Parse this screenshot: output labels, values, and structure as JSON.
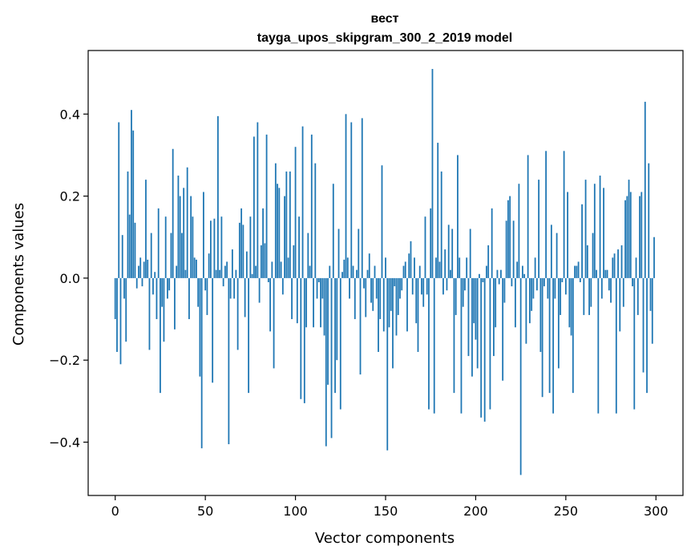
{
  "chart_data": {
    "type": "bar",
    "title": "вест",
    "subtitle": "tayga_upos_skipgram_300_2_2019 model",
    "xlabel": "Vector components",
    "ylabel": "Components values",
    "xlim": [
      -15,
      315
    ],
    "ylim": [
      -0.53,
      0.555
    ],
    "xticks": [
      0,
      50,
      100,
      150,
      200,
      250,
      300
    ],
    "xtick_labels": [
      "0",
      "50",
      "100",
      "150",
      "200",
      "250",
      "300"
    ],
    "yticks": [
      -0.4,
      -0.2,
      0.0,
      0.2,
      0.4
    ],
    "ytick_labels": [
      "−0.4",
      "−0.2",
      "0.0",
      "0.2",
      "0.4"
    ],
    "series_color": "#1f77b4",
    "x": [
      0,
      1,
      2,
      3,
      4,
      5,
      6,
      7,
      8,
      9,
      10,
      11,
      12,
      13,
      14,
      15,
      16,
      17,
      18,
      19,
      20,
      21,
      22,
      23,
      24,
      25,
      26,
      27,
      28,
      29,
      30,
      31,
      32,
      33,
      34,
      35,
      36,
      37,
      38,
      39,
      40,
      41,
      42,
      43,
      44,
      45,
      46,
      47,
      48,
      49,
      50,
      51,
      52,
      53,
      54,
      55,
      56,
      57,
      58,
      59,
      60,
      61,
      62,
      63,
      64,
      65,
      66,
      67,
      68,
      69,
      70,
      71,
      72,
      73,
      74,
      75,
      76,
      77,
      78,
      79,
      80,
      81,
      82,
      83,
      84,
      85,
      86,
      87,
      88,
      89,
      90,
      91,
      92,
      93,
      94,
      95,
      96,
      97,
      98,
      99,
      100,
      101,
      102,
      103,
      104,
      105,
      106,
      107,
      108,
      109,
      110,
      111,
      112,
      113,
      114,
      115,
      116,
      117,
      118,
      119,
      120,
      121,
      122,
      123,
      124,
      125,
      126,
      127,
      128,
      129,
      130,
      131,
      132,
      133,
      134,
      135,
      136,
      137,
      138,
      139,
      140,
      141,
      142,
      143,
      144,
      145,
      146,
      147,
      148,
      149,
      150,
      151,
      152,
      153,
      154,
      155,
      156,
      157,
      158,
      159,
      160,
      161,
      162,
      163,
      164,
      165,
      166,
      167,
      168,
      169,
      170,
      171,
      172,
      173,
      174,
      175,
      176,
      177,
      178,
      179,
      180,
      181,
      182,
      183,
      184,
      185,
      186,
      187,
      188,
      189,
      190,
      191,
      192,
      193,
      194,
      195,
      196,
      197,
      198,
      199,
      200,
      201,
      202,
      203,
      204,
      205,
      206,
      207,
      208,
      209,
      210,
      211,
      212,
      213,
      214,
      215,
      216,
      217,
      218,
      219,
      220,
      221,
      222,
      223,
      224,
      225,
      226,
      227,
      228,
      229,
      230,
      231,
      232,
      233,
      234,
      235,
      236,
      237,
      238,
      239,
      240,
      241,
      242,
      243,
      244,
      245,
      246,
      247,
      248,
      249,
      250,
      251,
      252,
      253,
      254,
      255,
      256,
      257,
      258,
      259,
      260,
      261,
      262,
      263,
      264,
      265,
      266,
      267,
      268,
      269,
      270,
      271,
      272,
      273,
      274,
      275,
      276,
      277,
      278,
      279,
      280,
      281,
      282,
      283,
      284,
      285,
      286,
      287,
      288,
      289,
      290,
      291,
      292,
      293,
      294,
      295,
      296,
      297,
      298,
      299
    ],
    "values": [
      -0.1,
      -0.18,
      0.38,
      -0.21,
      0.105,
      -0.05,
      -0.155,
      0.26,
      0.155,
      0.41,
      0.36,
      0.135,
      -0.025,
      0.03,
      0.05,
      -0.02,
      0.04,
      0.24,
      0.045,
      -0.175,
      0.11,
      -0.04,
      0.015,
      -0.1,
      0.17,
      -0.28,
      -0.07,
      -0.155,
      0.15,
      -0.05,
      -0.03,
      0.11,
      0.315,
      -0.125,
      0.03,
      0.25,
      0.2,
      0.11,
      0.22,
      0.02,
      0.27,
      -0.1,
      0.2,
      0.15,
      0.05,
      0.045,
      -0.07,
      -0.24,
      -0.415,
      0.21,
      -0.03,
      -0.09,
      0.06,
      0.14,
      -0.255,
      0.145,
      0.02,
      0.395,
      0.02,
      0.15,
      -0.02,
      0.03,
      0.04,
      -0.405,
      -0.05,
      0.07,
      -0.05,
      0.02,
      -0.175,
      0.135,
      0.17,
      0.13,
      -0.095,
      0.065,
      -0.28,
      0.15,
      0.01,
      0.345,
      0.03,
      0.38,
      -0.06,
      0.08,
      0.17,
      0.085,
      0.35,
      -0.01,
      -0.13,
      0.04,
      -0.22,
      0.28,
      0.23,
      0.22,
      0.04,
      -0.04,
      0.2,
      0.26,
      0.05,
      0.26,
      -0.1,
      0.08,
      0.32,
      -0.11,
      0.15,
      -0.295,
      0.37,
      -0.305,
      -0.12,
      0.11,
      0.03,
      0.35,
      -0.12,
      0.28,
      -0.05,
      -0.01,
      -0.12,
      -0.05,
      -0.14,
      -0.41,
      -0.26,
      0.03,
      -0.39,
      0.23,
      -0.28,
      -0.2,
      0.12,
      -0.32,
      0.015,
      0.045,
      0.4,
      0.05,
      -0.05,
      0.38,
      0.03,
      -0.1,
      0.02,
      0.12,
      -0.235,
      0.39,
      -0.025,
      -0.095,
      0.02,
      0.06,
      -0.06,
      -0.08,
      0.03,
      -0.05,
      -0.18,
      -0.1,
      0.275,
      -0.13,
      0.05,
      -0.42,
      -0.12,
      -0.08,
      -0.22,
      -0.02,
      -0.14,
      -0.09,
      -0.05,
      -0.03,
      0.03,
      0.04,
      -0.13,
      0.06,
      0.09,
      -0.04,
      0.05,
      -0.11,
      -0.18,
      0.03,
      -0.04,
      -0.07,
      0.15,
      -0.04,
      -0.32,
      0.17,
      0.51,
      -0.33,
      0.05,
      0.33,
      0.04,
      0.26,
      -0.04,
      0.07,
      -0.03,
      0.13,
      0.02,
      0.12,
      -0.28,
      -0.09,
      0.3,
      0.05,
      -0.33,
      -0.07,
      -0.03,
      0.05,
      -0.19,
      0.12,
      -0.24,
      -0.11,
      -0.15,
      -0.22,
      0.01,
      -0.34,
      -0.01,
      -0.35,
      0.03,
      0.08,
      -0.32,
      0.17,
      -0.19,
      -0.12,
      0.02,
      -0.015,
      0.02,
      -0.25,
      -0.06,
      0.14,
      0.19,
      0.2,
      -0.02,
      0.14,
      -0.12,
      0.04,
      0.23,
      -0.48,
      0.03,
      0.01,
      -0.16,
      0.3,
      -0.11,
      -0.08,
      -0.05,
      0.05,
      -0.03,
      0.24,
      -0.18,
      -0.29,
      -0.02,
      0.31,
      -0.05,
      -0.28,
      0.13,
      -0.33,
      -0.05,
      0.11,
      -0.22,
      -0.09,
      -0.01,
      0.31,
      -0.04,
      0.21,
      -0.12,
      -0.14,
      -0.28,
      0.03,
      0.03,
      0.04,
      -0.01,
      0.18,
      -0.09,
      0.24,
      0.08,
      -0.09,
      -0.07,
      0.11,
      0.23,
      0.02,
      -0.33,
      0.25,
      -0.05,
      0.22,
      0.02,
      0.02,
      -0.03,
      -0.06,
      0.05,
      0.06,
      -0.33,
      0.07,
      -0.13,
      0.08,
      -0.07,
      0.19,
      0.2,
      0.24,
      0.21,
      -0.02,
      -0.32,
      0.05,
      -0.09,
      0.2,
      0.21,
      -0.23,
      0.43,
      -0.28,
      0.28,
      -0.08,
      -0.16,
      0.1
    ]
  }
}
